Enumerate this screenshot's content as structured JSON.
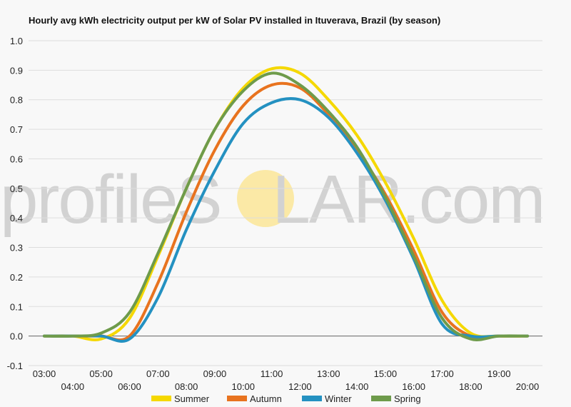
{
  "chart_data": {
    "type": "line",
    "title": "Hourly avg kWh electricity output per kW of Solar PV installed in Ituverava, Brazil (by season)",
    "xlabel": "",
    "ylabel": "",
    "x": [
      "03:00",
      "04:00",
      "05:00",
      "06:00",
      "07:00",
      "08:00",
      "09:00",
      "10:00",
      "11:00",
      "12:00",
      "13:00",
      "14:00",
      "15:00",
      "16:00",
      "17:00",
      "18:00",
      "19:00",
      "20:00"
    ],
    "ylim": [
      -0.1,
      1.0
    ],
    "yticks": [
      "1.0",
      "0.9",
      "0.8",
      "0.7",
      "0.6",
      "0.5",
      "0.4",
      "0.3",
      "0.2",
      "0.1",
      "0.0",
      "-0.1"
    ],
    "grid": true,
    "legend_position": "bottom",
    "series": [
      {
        "name": "Summer",
        "color": "#f5d800",
        "values": [
          0.0,
          0.0,
          -0.01,
          0.06,
          0.27,
          0.5,
          0.7,
          0.84,
          0.905,
          0.89,
          0.8,
          0.68,
          0.52,
          0.33,
          0.12,
          0.01,
          0.0,
          0.0
        ]
      },
      {
        "name": "Autumn",
        "color": "#e8731f",
        "values": [
          0.0,
          0.0,
          0.0,
          0.0,
          0.18,
          0.42,
          0.63,
          0.78,
          0.85,
          0.84,
          0.75,
          0.63,
          0.48,
          0.29,
          0.08,
          0.0,
          0.0,
          0.0
        ]
      },
      {
        "name": "Winter",
        "color": "#2491c1",
        "values": [
          0.0,
          0.0,
          0.0,
          -0.01,
          0.13,
          0.36,
          0.56,
          0.72,
          0.79,
          0.8,
          0.74,
          0.62,
          0.46,
          0.26,
          0.04,
          0.0,
          0.0,
          0.0
        ]
      },
      {
        "name": "Spring",
        "color": "#6e9b4b",
        "values": [
          0.0,
          0.0,
          0.01,
          0.08,
          0.28,
          0.5,
          0.7,
          0.83,
          0.89,
          0.85,
          0.76,
          0.64,
          0.47,
          0.27,
          0.06,
          -0.01,
          0.0,
          0.0
        ]
      }
    ]
  },
  "watermark": {
    "part1": "profileS",
    "part2": "LAR.com",
    "sun_color": "#fbe9a6"
  }
}
